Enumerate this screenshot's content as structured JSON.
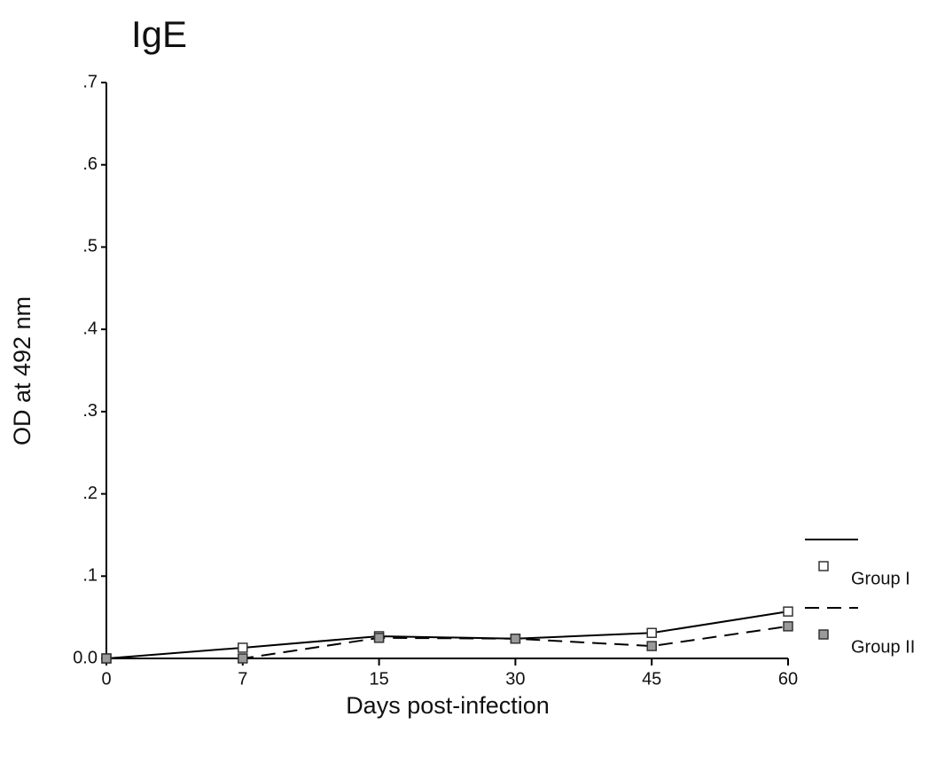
{
  "chart_data": {
    "type": "line",
    "title": "IgE",
    "x_label": "Days post-infection",
    "y_label": "OD at 492 nm",
    "categories": [
      "0",
      "7",
      "15",
      "30",
      "45",
      "60"
    ],
    "series": [
      {
        "name": "Group I",
        "color": "#000000",
        "line_style": "solid",
        "marker_fill": "#ffffff",
        "values": [
          0.0,
          0.013,
          0.027,
          0.024,
          0.031,
          0.057
        ]
      },
      {
        "name": "Group II",
        "color": "#000000",
        "line_style": "dashed",
        "marker_fill": "#9a9a9a",
        "values": [
          0.0,
          0.0,
          0.025,
          0.024,
          0.015,
          0.039
        ]
      }
    ],
    "ylim": [
      0,
      0.7
    ],
    "yticks": [
      {
        "value": 0,
        "label": "0.0"
      },
      {
        "value": 0.1,
        "label": ".1"
      },
      {
        "value": 0.2,
        "label": ".2"
      },
      {
        "value": 0.3,
        "label": ".3"
      },
      {
        "value": 0.4,
        "label": ".4"
      },
      {
        "value": 0.5,
        "label": ".5"
      },
      {
        "value": 0.6,
        "label": ".6"
      },
      {
        "value": 0.7,
        "label": ".7"
      }
    ],
    "grid": false,
    "legend": "right"
  }
}
